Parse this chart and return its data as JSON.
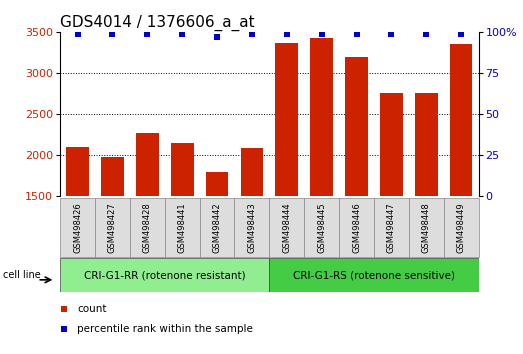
{
  "title": "GDS4014 / 1376606_a_at",
  "samples": [
    "GSM498426",
    "GSM498427",
    "GSM498428",
    "GSM498441",
    "GSM498442",
    "GSM498443",
    "GSM498444",
    "GSM498445",
    "GSM498446",
    "GSM498447",
    "GSM498448",
    "GSM498449"
  ],
  "counts": [
    2100,
    1980,
    2270,
    2150,
    1800,
    2090,
    3360,
    3430,
    3200,
    2760,
    2760,
    3350
  ],
  "percentile_ranks": [
    99,
    99,
    99,
    99,
    97,
    99,
    99,
    99,
    99,
    99,
    99,
    99
  ],
  "group1_label": "CRI-G1-RR (rotenone resistant)",
  "group2_label": "CRI-G1-RS (rotenone sensitive)",
  "group1_indices": [
    0,
    1,
    2,
    3,
    4,
    5
  ],
  "group2_indices": [
    6,
    7,
    8,
    9,
    10,
    11
  ],
  "group1_color": "#90EE90",
  "group2_color": "#44CC44",
  "bar_color": "#CC2200",
  "dot_color": "#0000CC",
  "ymin": 1500,
  "ymax": 3500,
  "yticks": [
    1500,
    2000,
    2500,
    3000,
    3500
  ],
  "right_yticks": [
    0,
    25,
    50,
    75,
    100
  ],
  "right_yticklabels": [
    "0",
    "25",
    "50",
    "75",
    "100%"
  ],
  "legend_count_label": "count",
  "legend_pct_label": "percentile rank within the sample",
  "cell_line_label": "cell line",
  "title_fontsize": 11,
  "tick_fontsize": 8,
  "sample_fontsize": 6,
  "group_fontsize": 7.5,
  "legend_fontsize": 7.5,
  "bar_width": 0.65
}
